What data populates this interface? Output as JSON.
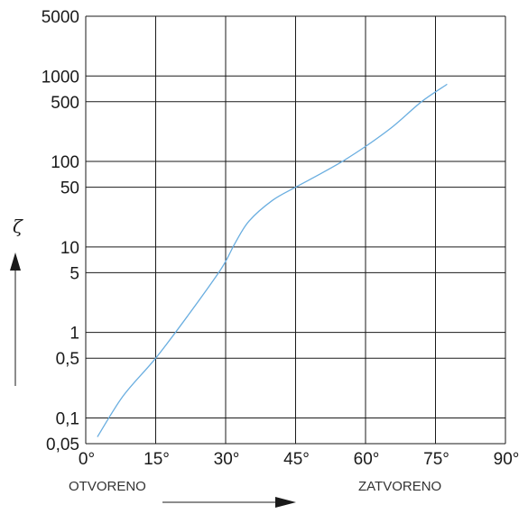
{
  "chart_data": {
    "type": "line",
    "y_scale": "log",
    "grid": true,
    "ylabel": "ζ",
    "xlim": [
      0,
      90
    ],
    "ylim": [
      0.05,
      5000
    ],
    "x_ticks": [
      "0°",
      "15°",
      "30°",
      "45°",
      "60°",
      "75°",
      "90°"
    ],
    "x_tick_values": [
      0,
      15,
      30,
      45,
      60,
      75,
      90
    ],
    "y_ticks": [
      "5000",
      "1000",
      "500",
      "100",
      "50",
      "10",
      "5",
      "1",
      "0,5",
      "0,1",
      "0,05"
    ],
    "y_tick_values": [
      5000,
      1000,
      500,
      100,
      50,
      10,
      5,
      1,
      0.5,
      0.1,
      0.05
    ],
    "annotations": {
      "left": "OTVORENO",
      "right": "ZATVORENO"
    },
    "series": [
      {
        "x": [
          2.5,
          8,
          15,
          22,
          29,
          32,
          35,
          40,
          45,
          50,
          55,
          60,
          66,
          72,
          77.5
        ],
        "y": [
          0.06,
          0.18,
          0.5,
          1.6,
          5.5,
          11,
          20,
          35,
          50,
          70,
          100,
          150,
          260,
          500,
          800
        ]
      }
    ]
  },
  "colors": {
    "line": "#6aaee0",
    "grid": "#1a1a1a"
  },
  "icons": [
    "arrow-up-icon",
    "arrow-right-icon"
  ]
}
